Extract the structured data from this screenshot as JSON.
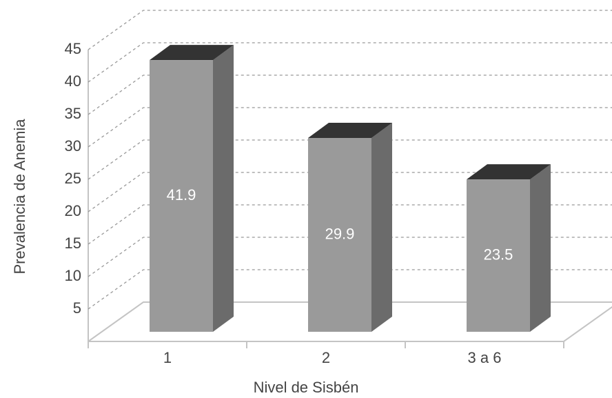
{
  "chart_data": {
    "type": "bar",
    "x_label": "Nivel de Sisbén",
    "y_label": "Prevalencia de Anemia",
    "categories": [
      "1",
      "2",
      "3 a 6"
    ],
    "values": [
      41.9,
      29.9,
      23.5
    ],
    "colors": {
      "front": "#9a9a9a",
      "side": "#6b6b6b",
      "top": "#333333"
    },
    "ylim": [
      0,
      45
    ],
    "yticks": [
      5,
      10,
      15,
      20,
      25,
      30,
      35,
      40,
      45
    ],
    "grid": true
  }
}
